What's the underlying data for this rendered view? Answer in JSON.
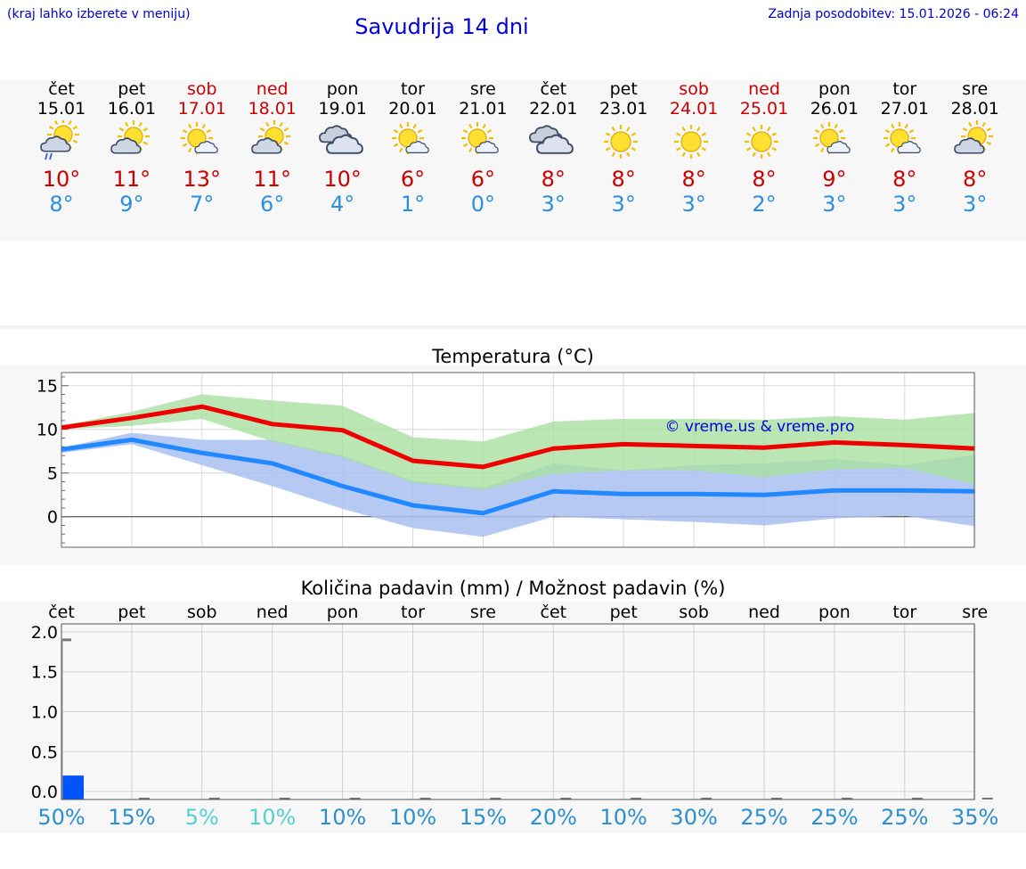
{
  "header": {
    "note": "(kraj lahko izberete v meniju)",
    "title": "Savudrija 14 dni",
    "updated": "Zadnja posodobitev: 15.01.2026 - 06:24"
  },
  "days": [
    {
      "name": "čet",
      "date": "15.01",
      "weekend": false,
      "icon": "sun-cloud-rain-icon",
      "tmax": "10°",
      "tmin": "8°"
    },
    {
      "name": "pet",
      "date": "16.01",
      "weekend": false,
      "icon": "sun-cloud-icon",
      "tmax": "11°",
      "tmin": "9°"
    },
    {
      "name": "sob",
      "date": "17.01",
      "weekend": true,
      "icon": "sun-small-cloud-icon",
      "tmax": "13°",
      "tmin": "7°"
    },
    {
      "name": "ned",
      "date": "18.01",
      "weekend": true,
      "icon": "sun-cloud-icon",
      "tmax": "11°",
      "tmin": "6°"
    },
    {
      "name": "pon",
      "date": "19.01",
      "weekend": false,
      "icon": "cloudy-icon",
      "tmax": "10°",
      "tmin": "4°"
    },
    {
      "name": "tor",
      "date": "20.01",
      "weekend": false,
      "icon": "sun-small-cloud-icon",
      "tmax": "6°",
      "tmin": "1°"
    },
    {
      "name": "sre",
      "date": "21.01",
      "weekend": false,
      "icon": "sun-small-cloud-icon",
      "tmax": "6°",
      "tmin": "0°"
    },
    {
      "name": "čet",
      "date": "22.01",
      "weekend": false,
      "icon": "cloudy-icon",
      "tmax": "8°",
      "tmin": "3°"
    },
    {
      "name": "pet",
      "date": "23.01",
      "weekend": false,
      "icon": "sun-icon",
      "tmax": "8°",
      "tmin": "3°"
    },
    {
      "name": "sob",
      "date": "24.01",
      "weekend": true,
      "icon": "sun-icon",
      "tmax": "8°",
      "tmin": "3°"
    },
    {
      "name": "ned",
      "date": "25.01",
      "weekend": true,
      "icon": "sun-icon",
      "tmax": "8°",
      "tmin": "2°"
    },
    {
      "name": "pon",
      "date": "26.01",
      "weekend": false,
      "icon": "sun-small-cloud-icon",
      "tmax": "9°",
      "tmin": "3°"
    },
    {
      "name": "tor",
      "date": "27.01",
      "weekend": false,
      "icon": "sun-small-cloud-icon",
      "tmax": "8°",
      "tmin": "3°"
    },
    {
      "name": "sre",
      "date": "28.01",
      "weekend": false,
      "icon": "sun-cloud-icon",
      "tmax": "8°",
      "tmin": "3°"
    }
  ],
  "colors": {
    "max_line": "#ee0000",
    "min_line": "#2288ff",
    "max_band": "#a8e0a0",
    "min_band": "#a8c0f0",
    "bar": "#0055ff",
    "weekend": "#cc0000",
    "title": "#0000dd"
  },
  "chart_data": [
    {
      "type": "line",
      "title": "Temperatura (°C)",
      "watermark": "© vreme.us & vreme.pro",
      "ylim": [
        -3.5,
        16.5
      ],
      "yticks": [
        0,
        5,
        10,
        15
      ],
      "ytick_labels": [
        "0",
        "5",
        "10",
        "15"
      ],
      "series": [
        {
          "name": "max",
          "values": [
            10.2,
            11.3,
            12.6,
            10.6,
            9.9,
            6.4,
            5.7,
            7.8,
            8.3,
            8.1,
            7.9,
            8.5,
            8.2,
            7.8
          ]
        },
        {
          "name": "min",
          "values": [
            7.7,
            8.8,
            7.3,
            6.1,
            3.5,
            1.3,
            0.4,
            2.9,
            2.6,
            2.6,
            2.5,
            3.0,
            3.0,
            2.9
          ]
        }
      ],
      "bands": [
        {
          "name": "max-range",
          "upper": [
            10.4,
            12.0,
            14.0,
            13.3,
            12.7,
            9.1,
            8.6,
            10.9,
            11.2,
            11.2,
            11.1,
            11.5,
            11.1,
            11.9
          ],
          "lower": [
            10.0,
            10.4,
            11.2,
            8.6,
            6.8,
            3.9,
            3.1,
            4.9,
            5.3,
            5.3,
            4.5,
            5.4,
            5.6,
            3.7
          ]
        },
        {
          "name": "min-range",
          "upper": [
            7.9,
            9.6,
            8.8,
            8.8,
            7.0,
            4.1,
            3.3,
            6.1,
            5.3,
            5.9,
            6.1,
            6.6,
            5.9,
            7.1
          ],
          "lower": [
            7.3,
            8.3,
            5.9,
            3.5,
            0.9,
            -1.3,
            -2.3,
            0.0,
            -0.3,
            -0.6,
            -1.0,
            -0.2,
            0.1,
            -1.1
          ]
        }
      ]
    },
    {
      "type": "bar",
      "title": "Količina padavin (mm) / Možnost padavin (%)",
      "categories": [
        "čet",
        "pet",
        "sob",
        "ned",
        "pon",
        "tor",
        "sre",
        "čet",
        "pet",
        "sob",
        "ned",
        "pon",
        "tor",
        "sre"
      ],
      "ylim": [
        -0.1,
        2.1
      ],
      "yticks": [
        0.0,
        0.5,
        1.0,
        1.5,
        2.0
      ],
      "ytick_labels": [
        "0.0",
        "0.5",
        "1.0",
        "1.5",
        "2.0"
      ],
      "values": [
        0.2,
        0,
        0,
        0,
        0,
        0,
        0,
        0,
        0,
        0,
        0,
        0,
        0,
        0
      ],
      "max_values": [
        1.9,
        0,
        0,
        0,
        0,
        0,
        0,
        0,
        0,
        0,
        0,
        0,
        0,
        0
      ],
      "probability": [
        "50%",
        "15%",
        "5%",
        "10%",
        "10%",
        "10%",
        "15%",
        "20%",
        "10%",
        "30%",
        "25%",
        "25%",
        "25%",
        "35%"
      ],
      "probability_colors": [
        "#2b8fd0",
        "#2b8fd0",
        "#55d0d0",
        "#55d0d0",
        "#2b8fd0",
        "#2b8fd0",
        "#2b8fd0",
        "#2b8fd0",
        "#2b8fd0",
        "#2b8fd0",
        "#2b8fd0",
        "#2b8fd0",
        "#2b8fd0",
        "#2b8fd0"
      ]
    }
  ]
}
